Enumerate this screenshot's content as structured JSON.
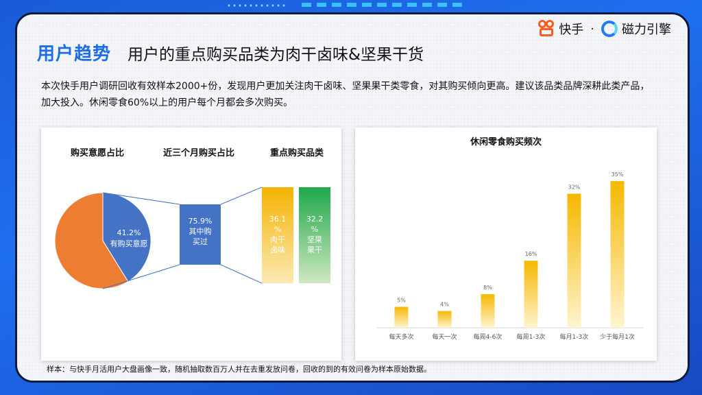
{
  "header": {
    "tag": "用户趋势",
    "title": "用户的重点购买品类为肉干卤味&坚果干货",
    "logo_kuaishou": "快手",
    "logo_separator": "·",
    "logo_cili": "磁力引擎"
  },
  "intro": "本次快手用户调研回收有效样本2000+份，发现用户更加关注肉干卤味、坚果果干类零食，对其购买倾向更高。建议该品类品牌深耕此类产品，加大投入。休闲零食60%以上的用户每个月都会多次购买。",
  "footnote": "样本：与快手月活用户大盘画像一致，随机抽取数百万人并在去重发放问卷，回收的到的有效问卷为样本原始数据。",
  "colors": {
    "accent": "#1c6ee8",
    "pie_blue": "#4472c4",
    "pie_orange": "#ed7d31",
    "bar_yellow": "#f5b800",
    "bar_green": "#22a84a"
  },
  "chart_data": [
    {
      "type": "pie",
      "title": "购买意愿占比",
      "slices": [
        {
          "label": "有购买意愿",
          "value": 41.2,
          "display": "41.2%"
        },
        {
          "label": "",
          "value": 58.8
        }
      ]
    },
    {
      "type": "bar",
      "title": "近三个月购买占比",
      "categories": [
        "其中购买过"
      ],
      "values": [
        75.9
      ],
      "display": [
        "75.9%"
      ],
      "label_lines": [
        "75.9%",
        "其中购",
        "买过"
      ]
    },
    {
      "type": "bar",
      "title": "重点购买品类",
      "categories": [
        "肉干卤味",
        "坚果果干"
      ],
      "values": [
        36.1,
        32.2
      ],
      "label_lines": [
        [
          "36.1",
          "%",
          "肉干",
          "卤味"
        ],
        [
          "32.2",
          "%",
          "坚果",
          "果干"
        ]
      ]
    },
    {
      "type": "bar",
      "title": "休闲零食购买频次",
      "categories": [
        "每天多次",
        "每天一次",
        "每周4-6次",
        "每周1-3次",
        "每月1-3次",
        "少于每月1次"
      ],
      "values": [
        5,
        4,
        8,
        16,
        32,
        35
      ],
      "data_labels": [
        "5%",
        "4%",
        "8%",
        "16%",
        "32%",
        "35%"
      ],
      "ylim": [
        0,
        36
      ]
    }
  ]
}
